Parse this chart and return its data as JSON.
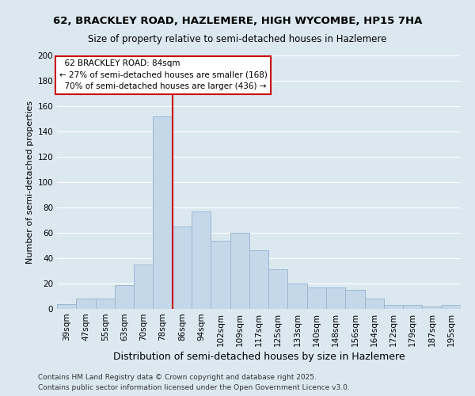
{
  "title_line1": "62, BRACKLEY ROAD, HAZLEMERE, HIGH WYCOMBE, HP15 7HA",
  "title_line2": "Size of property relative to semi-detached houses in Hazlemere",
  "bar_labels": [
    "39sqm",
    "47sqm",
    "55sqm",
    "63sqm",
    "70sqm",
    "78sqm",
    "86sqm",
    "94sqm",
    "102sqm",
    "109sqm",
    "117sqm",
    "125sqm",
    "133sqm",
    "140sqm",
    "148sqm",
    "156sqm",
    "164sqm",
    "172sqm",
    "179sqm",
    "187sqm",
    "195sqm"
  ],
  "bar_heights": [
    4,
    8,
    8,
    19,
    35,
    152,
    65,
    77,
    54,
    60,
    46,
    31,
    20,
    17,
    17,
    15,
    8,
    3,
    3,
    2,
    3
  ],
  "bar_color": "#c5d8ea",
  "bar_edge_color": "#9ab8d0",
  "vline_color": "#cc0000",
  "ylabel": "Number of semi-detached properties",
  "xlabel": "Distribution of semi-detached houses by size in Hazlemere",
  "ylim": [
    0,
    200
  ],
  "yticks": [
    0,
    20,
    40,
    60,
    80,
    100,
    120,
    140,
    160,
    180,
    200
  ],
  "annotation_title": "62 BRACKLEY ROAD: 84sqm",
  "annotation_line1": "← 27% of semi-detached houses are smaller (168)",
  "annotation_line2": "70% of semi-detached houses are larger (436) →",
  "footer1": "Contains HM Land Registry data © Crown copyright and database right 2025.",
  "footer2": "Contains public sector information licensed under the Open Government Licence v3.0.",
  "bg_color": "#dce8f0",
  "plot_bg_color": "#dce8f0",
  "grid_color": "#ffffff",
  "title1_fontsize": 9.5,
  "title2_fontsize": 8.5,
  "ylabel_fontsize": 8,
  "xlabel_fontsize": 9,
  "tick_fontsize": 7.5,
  "annot_fontsize": 7.5,
  "footer_fontsize": 6.5
}
